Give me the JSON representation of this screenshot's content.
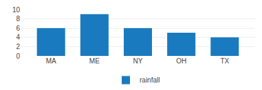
{
  "chart_data": {
    "type": "bar",
    "categories": [
      "MA",
      "ME",
      "NY",
      "OH",
      "TX"
    ],
    "series": [
      {
        "name": "rainfall",
        "color": "#1a7abf",
        "values": [
          6,
          9,
          6,
          5,
          4
        ]
      }
    ],
    "ylim": [
      0,
      10
    ],
    "yticks": [
      0,
      2,
      4,
      6,
      8,
      10
    ],
    "grid": true,
    "legend": "bottom"
  }
}
